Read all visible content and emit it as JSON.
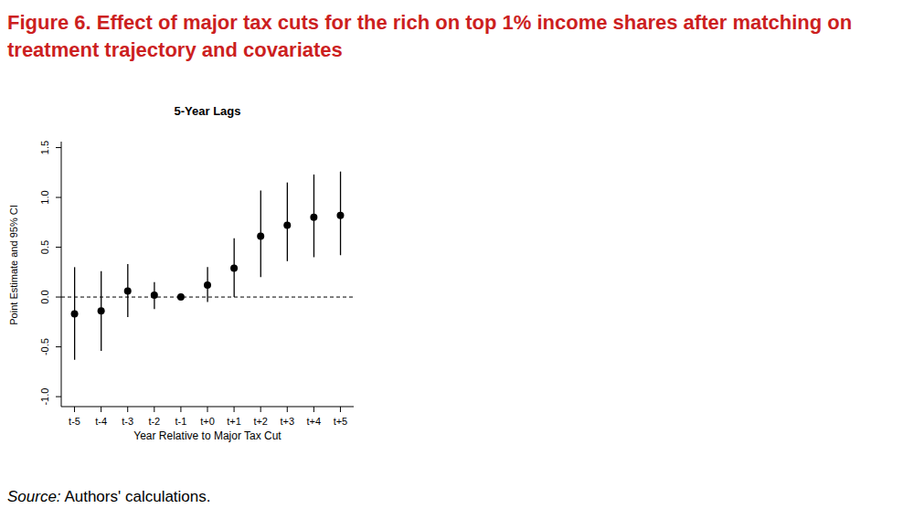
{
  "chart_data": {
    "type": "errorbar",
    "title": "Figure 6. Effect of major tax cuts for the rich on top 1% income shares after matching on treatment trajectory and covariates",
    "panel_title": "5-Year Lags",
    "x_label": "Year Relative to Major Tax Cut",
    "y_label": "Point Estimate and 95% CI",
    "source_label": "Source:",
    "source": "Authors' calculations.",
    "categories": [
      "t-5",
      "t-4",
      "t-3",
      "t-2",
      "t-1",
      "t+0",
      "t+1",
      "t+2",
      "t+3",
      "t+4",
      "t+5"
    ],
    "values": [
      -0.17,
      -0.14,
      0.06,
      0.02,
      0.0,
      0.12,
      0.29,
      0.61,
      0.72,
      0.8,
      0.82
    ],
    "ci_low": [
      -0.63,
      -0.54,
      -0.2,
      -0.12,
      -0.01,
      -0.05,
      0.0,
      0.2,
      0.36,
      0.4,
      0.42
    ],
    "ci_high": [
      0.3,
      0.26,
      0.33,
      0.15,
      0.01,
      0.3,
      0.59,
      1.07,
      1.15,
      1.23,
      1.26
    ],
    "color": "#000000",
    "marker": "circle",
    "hline": 0,
    "ylim": [
      -1.1,
      1.56
    ],
    "yticks": [
      {
        "value": -1,
        "label": "-1.0"
      },
      {
        "value": -0.5,
        "label": "-0.5"
      },
      {
        "value": 0,
        "label": "0.0"
      },
      {
        "value": 0.5,
        "label": "0.5"
      },
      {
        "value": 1,
        "label": "1.0"
      },
      {
        "value": 1.5,
        "label": "1.5"
      }
    ],
    "grid": false
  }
}
